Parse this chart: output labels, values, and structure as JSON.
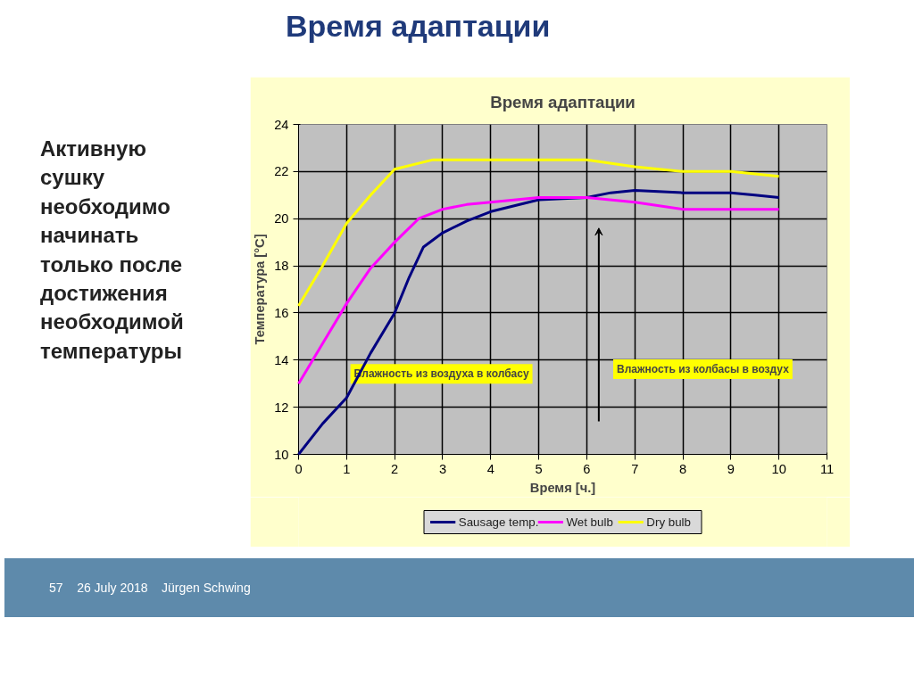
{
  "chart_data": {
    "type": "line",
    "title": "Время адаптации",
    "xlabel": "Время [ч.]",
    "ylabel": "Температура [°C]",
    "xlim": [
      0,
      11
    ],
    "xticks": [
      0,
      1,
      2,
      3,
      4,
      5,
      6,
      7,
      8,
      9,
      10,
      11
    ],
    "ylim": [
      10,
      24
    ],
    "yticks": [
      10,
      12,
      14,
      16,
      18,
      20,
      22,
      24
    ],
    "grid": true,
    "legend": "bottom",
    "line_style": "solid",
    "series": [
      {
        "name": "Sausage temp.",
        "color": "#000080",
        "x": [
          0,
          0.5,
          1,
          1.5,
          2,
          2.3,
          2.6,
          3,
          3.5,
          4,
          5,
          6,
          6.5,
          7,
          8,
          9,
          9.5,
          10
        ],
        "values": [
          10,
          11.3,
          12.4,
          14.3,
          16,
          17.5,
          18.8,
          19.4,
          19.9,
          20.3,
          20.8,
          20.9,
          21.1,
          21.2,
          21.1,
          21.1,
          21,
          20.9
        ]
      },
      {
        "name": "Wet bulb",
        "color": "#ff00ff",
        "x": [
          0,
          0.5,
          1,
          1.5,
          2,
          2.5,
          3,
          3.5,
          4,
          5,
          6,
          7,
          8,
          9,
          10
        ],
        "values": [
          13,
          14.7,
          16.4,
          17.9,
          19,
          20,
          20.4,
          20.6,
          20.7,
          20.9,
          20.9,
          20.7,
          20.4,
          20.4,
          20.4
        ]
      },
      {
        "name": "Dry bulb",
        "color": "#ffff00",
        "x": [
          0,
          0.5,
          1,
          1.5,
          2,
          2.8,
          4,
          6,
          7,
          8,
          9,
          10
        ],
        "values": [
          16.3,
          18,
          19.8,
          21,
          22.1,
          22.5,
          22.5,
          22.5,
          22.2,
          22,
          22,
          21.8
        ]
      }
    ],
    "annotations": [
      "Время адаптации",
      "Активную\nсушку\nнеобходимо\nначинать\nтолько после\nдостижения\nнеобходимой\nтемпературы",
      "Влажность из воздуха в колбасу",
      "Влажность из колбасы в воздух",
      "57",
      "26 July 2018",
      "Jürgen Schwing"
    ]
  }
}
